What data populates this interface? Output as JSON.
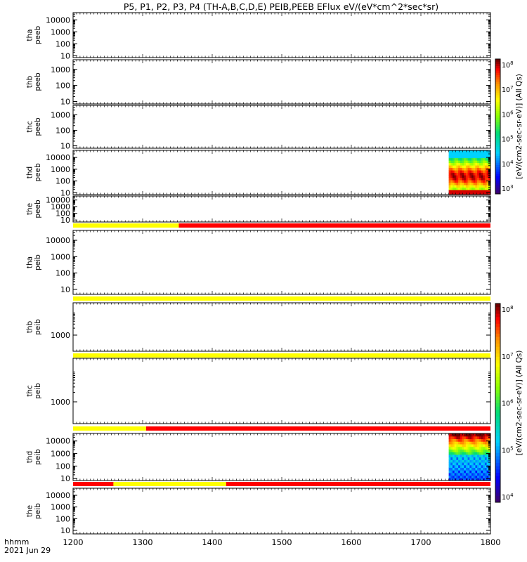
{
  "chart_data": {
    "type": "heatmap",
    "title": "P5, P1, P2, P3, P4 (TH-A,B,C,D,E) PEIB,PEEB EFlux eV/(eV*cm^2*sec*sr)",
    "x_ticks": [
      "1200",
      "1300",
      "1400",
      "1500",
      "1600",
      "1700",
      "1800"
    ],
    "x_range": [
      1200,
      1800
    ],
    "footer_line1": "hhmm",
    "footer_line2": "2021 Jun 29",
    "panels": [
      {
        "probe": "tha",
        "product": "peeb",
        "yticks": [
          "10",
          "100",
          "1000",
          "10000"
        ],
        "ylog": [
          7,
          40000
        ],
        "has_data": false,
        "data_range": null
      },
      {
        "probe": "thb",
        "product": "peeb",
        "yticks": [
          "10",
          "100",
          "1000"
        ],
        "ylog": [
          7,
          4000
        ],
        "has_data": false,
        "data_range": null
      },
      {
        "probe": "thc",
        "product": "peeb",
        "yticks": [
          "10",
          "100",
          "1000"
        ],
        "ylog": [
          7,
          4000
        ],
        "has_data": false,
        "data_range": null
      },
      {
        "probe": "thd",
        "product": "peeb",
        "yticks": [
          "10",
          "100",
          "1000",
          "10000"
        ],
        "ylog": [
          7,
          40000
        ],
        "has_data": true,
        "data_range": [
          1740,
          1800
        ]
      },
      {
        "probe": "the",
        "product": "peeb",
        "yticks": [
          "10",
          "100",
          "1000",
          "10000"
        ],
        "ylog": [
          5,
          40000
        ],
        "has_data": false,
        "data_range": null
      },
      {
        "probe": "tha",
        "product": "peib",
        "yticks": [
          "10",
          "100",
          "1000",
          "10000"
        ],
        "ylog": [
          5,
          40000
        ],
        "has_data": false,
        "data_range": null
      },
      {
        "probe": "thb",
        "product": "peib",
        "yticks": [
          "1000"
        ],
        "ylog": [
          200,
          25000
        ],
        "has_data": false,
        "data_range": null
      },
      {
        "probe": "thc",
        "product": "peib",
        "yticks": [
          "1000"
        ],
        "ylog": [
          200,
          25000
        ],
        "has_data": false,
        "data_range": null
      },
      {
        "probe": "thd",
        "product": "peib",
        "yticks": [
          "10",
          "100",
          "1000",
          "10000"
        ],
        "ylog": [
          7,
          40000
        ],
        "has_data": true,
        "data_range": [
          1740,
          1800
        ]
      },
      {
        "probe": "the",
        "product": "peib",
        "yticks": [
          "10",
          "100",
          "1000",
          "10000"
        ],
        "ylog": [
          5,
          40000
        ],
        "has_data": false,
        "data_range": null
      }
    ],
    "mode_bars": [
      {
        "after_panel": 4,
        "segments": [
          {
            "from": 1200,
            "to": 1352,
            "color": "yellow"
          },
          {
            "from": 1352,
            "to": 1800,
            "color": "red"
          }
        ]
      },
      {
        "after_panel": 5,
        "segments": [
          {
            "from": 1200,
            "to": 1800,
            "color": "yellow"
          }
        ]
      },
      {
        "after_panel": 6,
        "segments": [
          {
            "from": 1200,
            "to": 1800,
            "color": "yellow"
          }
        ]
      },
      {
        "after_panel": 7,
        "segments": [
          {
            "from": 1200,
            "to": 1305,
            "color": "yellow"
          },
          {
            "from": 1305,
            "to": 1800,
            "color": "red"
          }
        ]
      },
      {
        "after_panel": 8,
        "segments": [
          {
            "from": 1200,
            "to": 1258,
            "color": "red"
          },
          {
            "from": 1258,
            "to": 1420,
            "color": "yellow"
          },
          {
            "from": 1420,
            "to": 1800,
            "color": "red"
          }
        ]
      }
    ],
    "colorbars": [
      {
        "label": "[eV/(cm2-sec-sr-eV)] (All Qs)",
        "ticks": [
          "10^3",
          "10^4",
          "10^5",
          "10^6",
          "10^7",
          "10^8"
        ]
      },
      {
        "label": "[eV/(cm2-sec-sr-eV)] (All Qs)",
        "ticks": [
          "10^4",
          "10^5",
          "10^6",
          "10^7",
          "10^8"
        ]
      }
    ]
  },
  "colors": {
    "yellow": "#ffff00",
    "red": "#ff0000"
  }
}
